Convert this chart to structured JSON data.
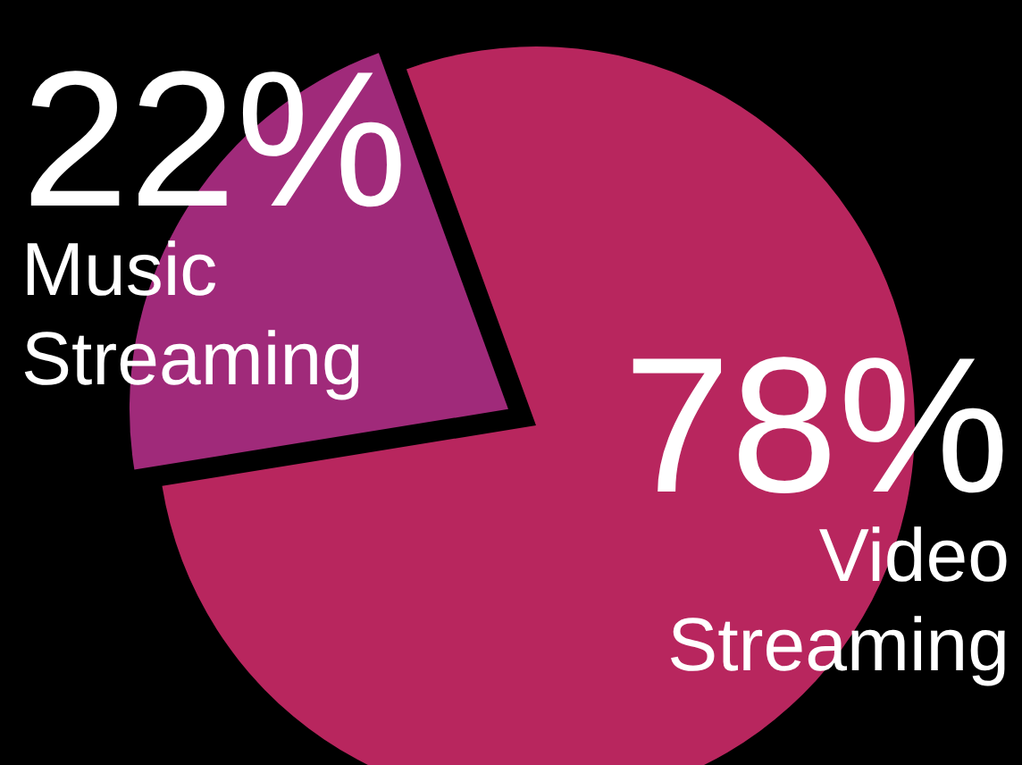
{
  "chart_data": {
    "type": "pie",
    "categories": [
      "Video Streaming",
      "Music Streaming"
    ],
    "values": [
      78,
      22
    ],
    "colors": [
      "#b8265e",
      "#a02a7a"
    ],
    "value_labels": [
      "78%",
      "22%"
    ],
    "legend": false
  }
}
